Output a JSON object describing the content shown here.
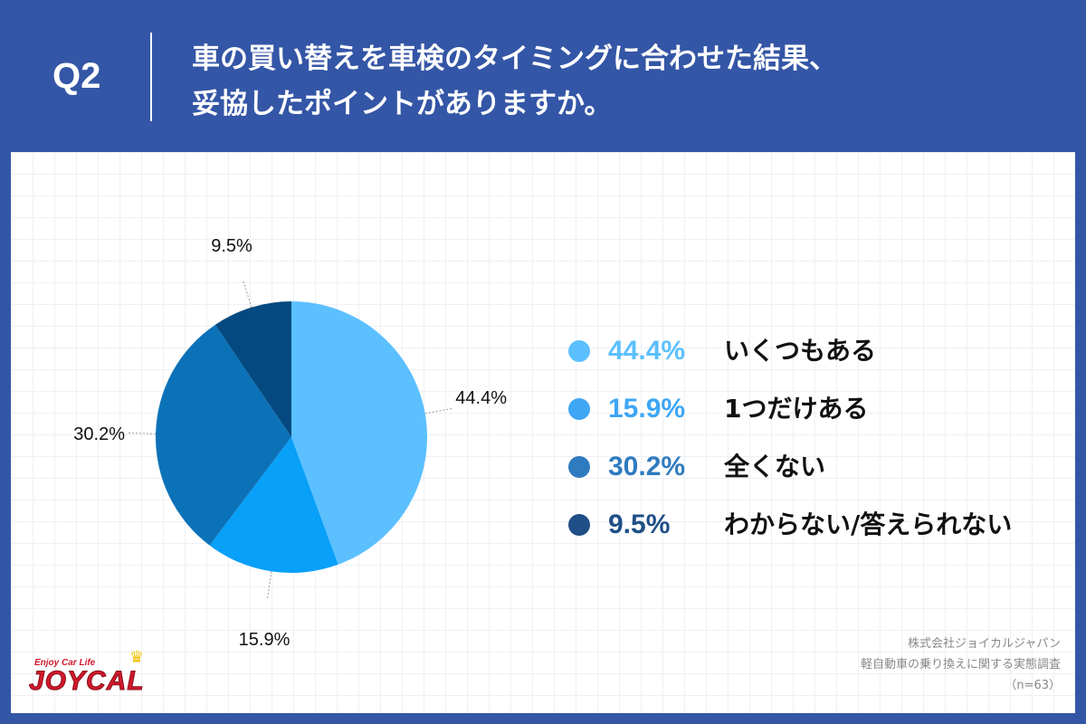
{
  "header": {
    "question_number": "Q2",
    "question_line1": "車の買い替えを車検のタイミングに合わせた結果、",
    "question_line2": "妥協したポイントがありますか。"
  },
  "chart_data": {
    "type": "pie",
    "start": "12 o'clock, clockwise",
    "slices": [
      {
        "label": "いくつもある",
        "value": 44.4,
        "display": "44.4%",
        "color": "#5cc0ff"
      },
      {
        "label": "1つだけある",
        "value": 15.9,
        "display": "15.9%",
        "color": "#08a0f8"
      },
      {
        "label": "全くない",
        "value": 30.2,
        "display": "30.2%",
        "color": "#0c72b8"
      },
      {
        "label": "わからない/答えられない",
        "value": 9.5,
        "display": "9.5%",
        "color": "#044a80"
      }
    ]
  },
  "legend": {
    "items": [
      {
        "pct": "44.4%",
        "label": "いくつもある",
        "dot_color": "#5cc0ff",
        "text_color": "#5cc0ff"
      },
      {
        "pct": "15.9%",
        "label": "1つだけある",
        "dot_color": "#3da6f5",
        "text_color": "#3da6f5"
      },
      {
        "pct": "30.2%",
        "label": "全くない",
        "dot_color": "#2f7bbf",
        "text_color": "#2f7bbf"
      },
      {
        "pct": "9.5%",
        "label": "わからない/答えられない",
        "dot_color": "#1e4f86",
        "text_color": "#1e4f86"
      }
    ]
  },
  "logo": {
    "tagline": "Enjoy Car Life",
    "name": "JOYCAL"
  },
  "credits": {
    "company": "株式会社ジョイカルジャパン",
    "survey": "軽自動車の乗り換えに関する実態調査",
    "sample": "（n=63）"
  },
  "colors": {
    "frame": "#3456a6",
    "panel": "#ffffff"
  }
}
